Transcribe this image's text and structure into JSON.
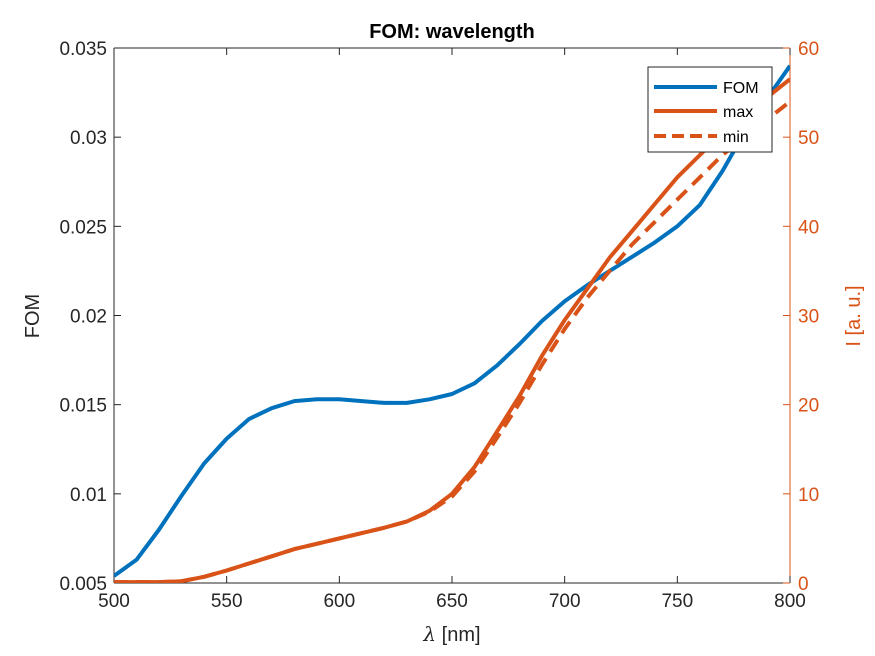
{
  "chart_data": {
    "type": "line",
    "title": "FOM: wavelength",
    "xlabel_symbol": "λ",
    "xlabel_unit": " [nm]",
    "ylabel_left": "FOM",
    "ylabel_right": "I [a. u.]",
    "xlim": [
      500,
      800
    ],
    "ylim_left": [
      0.005,
      0.035
    ],
    "ylim_right": [
      0,
      60
    ],
    "x_ticks": [
      "500",
      "550",
      "600",
      "650",
      "700",
      "750",
      "800"
    ],
    "y_left_ticks": [
      "0.005",
      "0.01",
      "0.015",
      "0.02",
      "0.025",
      "0.03",
      "0.035"
    ],
    "y_right_ticks": [
      "0",
      "10",
      "20",
      "30",
      "40",
      "50",
      "60"
    ],
    "legend_position": "top-right",
    "colors": {
      "fom": "#0072BD",
      "intensity": "#D95319",
      "right_axis": "#D95319",
      "axis": "#262626"
    },
    "x": [
      500,
      510,
      520,
      530,
      540,
      550,
      560,
      570,
      580,
      590,
      600,
      610,
      620,
      630,
      640,
      650,
      660,
      670,
      680,
      690,
      700,
      710,
      720,
      730,
      740,
      750,
      760,
      770,
      780,
      790,
      800
    ],
    "series": [
      {
        "name": "FOM",
        "axis": "left",
        "style": "solid",
        "values": [
          0.0054,
          0.0063,
          0.008,
          0.0099,
          0.0117,
          0.0131,
          0.0142,
          0.0148,
          0.0152,
          0.0153,
          0.0153,
          0.0152,
          0.0151,
          0.0151,
          0.0153,
          0.0156,
          0.0162,
          0.0172,
          0.0184,
          0.0197,
          0.0208,
          0.0217,
          0.0225,
          0.0233,
          0.0241,
          0.025,
          0.0262,
          0.0281,
          0.0303,
          0.0322,
          0.034
        ]
      },
      {
        "name": "max",
        "axis": "right",
        "style": "solid",
        "values": [
          0.1,
          0.1,
          0.1,
          0.2,
          0.7,
          1.4,
          2.2,
          3.0,
          3.8,
          4.4,
          5.0,
          5.6,
          6.2,
          6.9,
          8.1,
          10.0,
          13.0,
          17.0,
          21.0,
          25.5,
          29.5,
          33.0,
          36.5,
          39.5,
          42.5,
          45.5,
          48.0,
          50.5,
          52.5,
          54.5,
          56.5
        ]
      },
      {
        "name": "min",
        "axis": "right",
        "style": "dashed",
        "values": [
          0.1,
          0.1,
          0.1,
          0.2,
          0.7,
          1.4,
          2.2,
          3.0,
          3.8,
          4.4,
          5.0,
          5.6,
          6.2,
          6.9,
          8.0,
          9.7,
          12.5,
          16.3,
          20.2,
          24.5,
          28.5,
          32.0,
          35.0,
          38.0,
          40.5,
          43.0,
          45.5,
          48.0,
          50.0,
          52.0,
          54.0
        ]
      }
    ]
  }
}
